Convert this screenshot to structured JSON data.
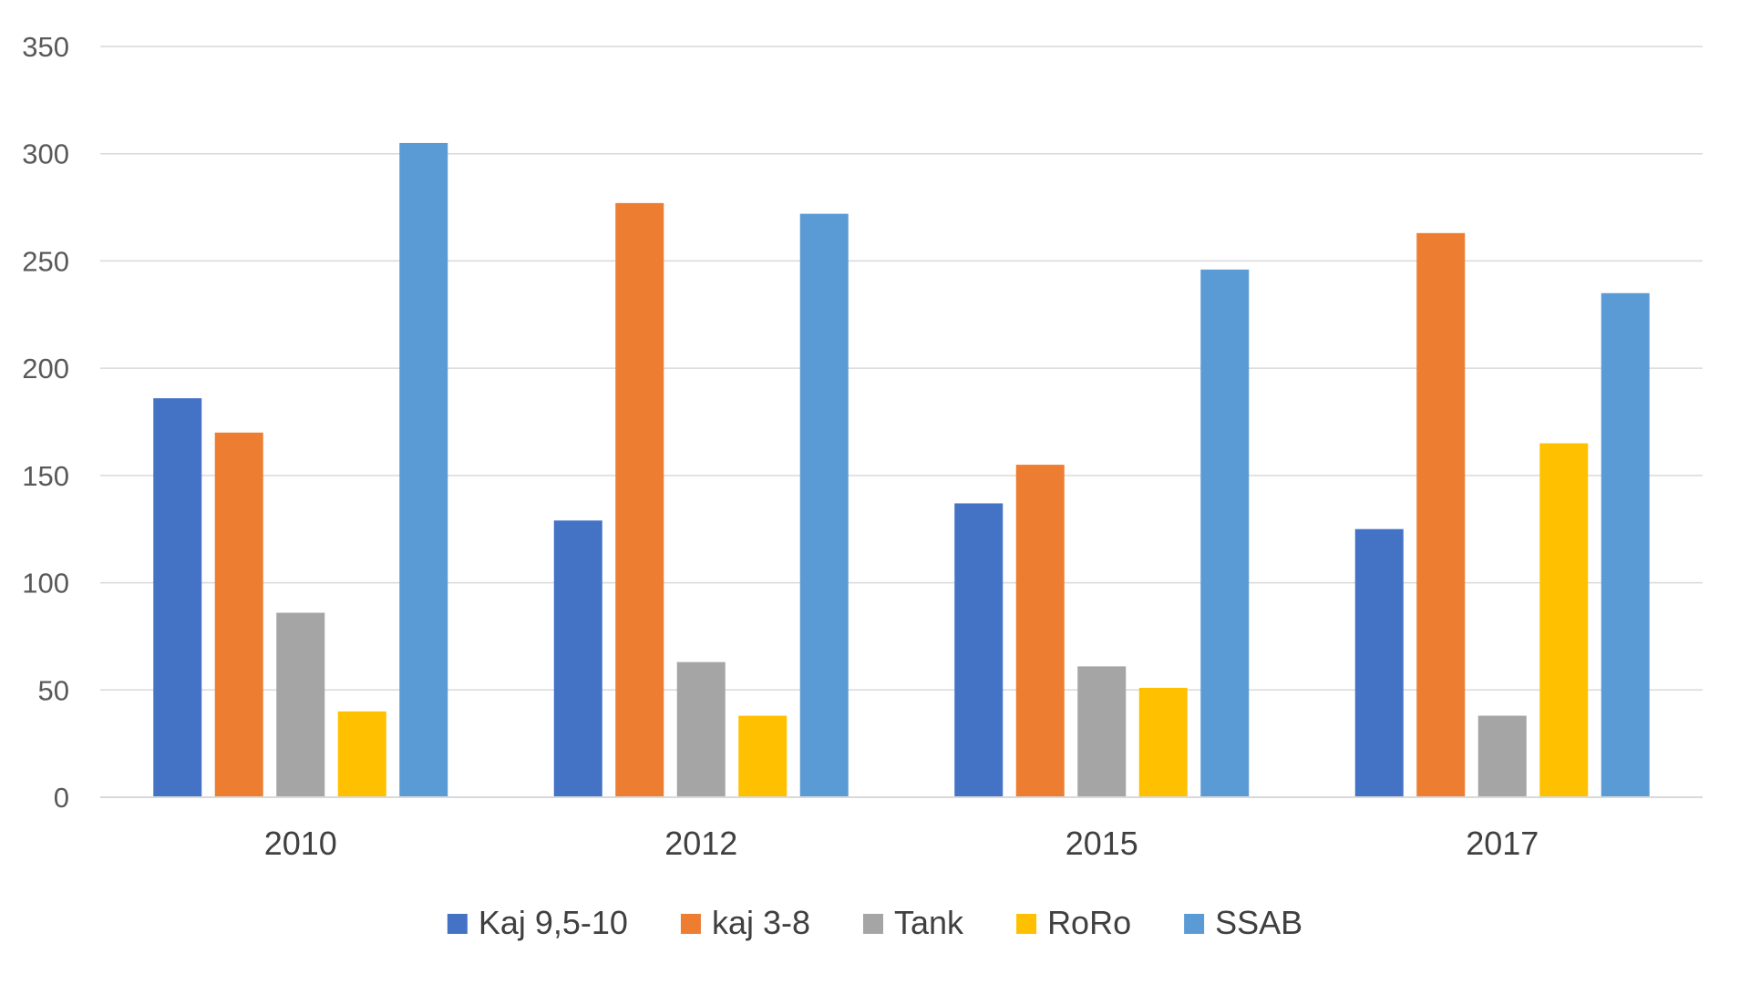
{
  "chart_data": {
    "type": "bar",
    "title": "",
    "xlabel": "",
    "ylabel": "",
    "ylim": [
      0,
      350
    ],
    "yticks": [
      0,
      50,
      100,
      150,
      200,
      250,
      300,
      350
    ],
    "grid": true,
    "legend_position": "bottom",
    "categories": [
      "2010",
      "2012",
      "2015",
      "2017"
    ],
    "series": [
      {
        "name": "Kaj 9,5-10",
        "color": "#4472C4",
        "values": [
          186,
          129,
          137,
          125
        ]
      },
      {
        "name": "kaj 3-8",
        "color": "#ED7D31",
        "values": [
          170,
          277,
          155,
          263
        ]
      },
      {
        "name": "Tank",
        "color": "#A5A5A5",
        "values": [
          86,
          63,
          61,
          38
        ]
      },
      {
        "name": "RoRo",
        "color": "#FFC000",
        "values": [
          40,
          38,
          51,
          165
        ]
      },
      {
        "name": "SSAB",
        "color": "#5B9BD5",
        "values": [
          305,
          272,
          246,
          235
        ]
      }
    ]
  }
}
